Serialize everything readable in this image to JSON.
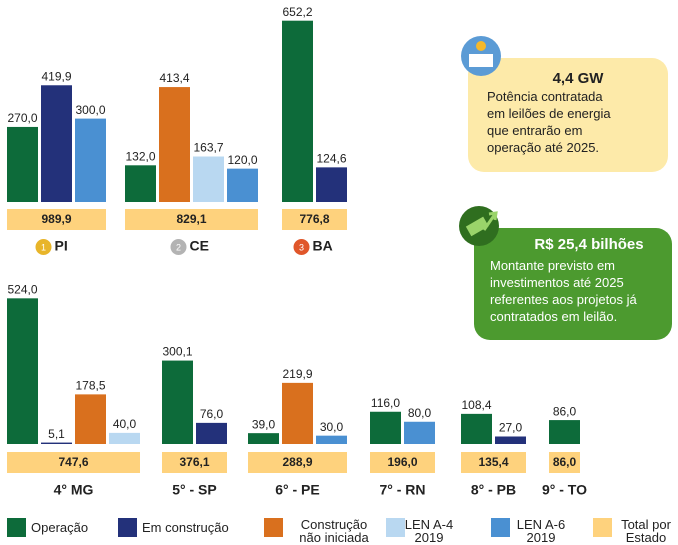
{
  "chart_data": {
    "type": "bar",
    "series": [
      {
        "name": "Operação",
        "color": "#0d6b3a"
      },
      {
        "name": "Em construção",
        "color": "#23317a"
      },
      {
        "name": "Construção não iniciada",
        "color": "#d9701e"
      },
      {
        "name": "LEN A-4 2019",
        "color": "#b9d8f1"
      },
      {
        "name": "LEN A-6 2019",
        "color": "#4a90d2"
      },
      {
        "name": "Total por Estado",
        "color": "#fed27d"
      }
    ],
    "groups": [
      {
        "label": "PI",
        "medal": "1",
        "series_index": [
          0,
          1,
          4
        ],
        "values": [
          270.0,
          419.9,
          300.0
        ],
        "value_labels": [
          "270,0",
          "419,9",
          "300,0"
        ],
        "total": "989,9"
      },
      {
        "label": "CE",
        "medal": "2",
        "series_index": [
          0,
          2,
          3,
          4
        ],
        "values": [
          132.0,
          413.4,
          163.7,
          120.0
        ],
        "value_labels": [
          "132,0",
          "413,4",
          "163,7",
          "120,0"
        ],
        "total": "829,1"
      },
      {
        "label": "BA",
        "medal": "3",
        "series_index": [
          0,
          1
        ],
        "values": [
          652.2,
          124.6
        ],
        "value_labels": [
          "652,2",
          "124,6"
        ],
        "total": "776,8"
      },
      {
        "label": "4° MG",
        "series_index": [
          0,
          1,
          2,
          3
        ],
        "values": [
          524.0,
          5.1,
          178.5,
          40.0
        ],
        "value_labels": [
          "524,0",
          "5,1",
          "178,5",
          "40,0"
        ],
        "total": "747,6"
      },
      {
        "label": "5° - SP",
        "series_index": [
          0,
          1
        ],
        "values": [
          300.1,
          76.0
        ],
        "value_labels": [
          "300,1",
          "76,0"
        ],
        "total": "376,1"
      },
      {
        "label": "6° - PE",
        "series_index": [
          0,
          2,
          4
        ],
        "values": [
          39.0,
          219.9,
          30.0
        ],
        "value_labels": [
          "39,0",
          "219,9",
          "30,0"
        ],
        "total": "288,9"
      },
      {
        "label": "7° - RN",
        "series_index": [
          0,
          4
        ],
        "values": [
          116.0,
          80.0
        ],
        "value_labels": [
          "116,0",
          "80,0"
        ],
        "total": "196,0"
      },
      {
        "label": "8° - PB",
        "series_index": [
          0,
          1
        ],
        "values": [
          108.4,
          27.0
        ],
        "value_labels": [
          "108,4",
          "27,0"
        ],
        "total": "135,4"
      },
      {
        "label": "9° - TO",
        "series_index": [
          0
        ],
        "values": [
          86.0
        ],
        "value_labels": [
          "86,0"
        ],
        "total": "86,0"
      }
    ],
    "annotations": [
      {
        "title": "4,4 GW",
        "lines": [
          "Potência contratada",
          "em leilões de energia",
          "que entrarão em",
          "operação até 2025."
        ]
      },
      {
        "title": "R$ 25,4 bilhões",
        "lines": [
          "Montante previsto em",
          "investimentos até 2025",
          "referentes aos projetos já",
          "contratados em leilão."
        ]
      }
    ]
  }
}
